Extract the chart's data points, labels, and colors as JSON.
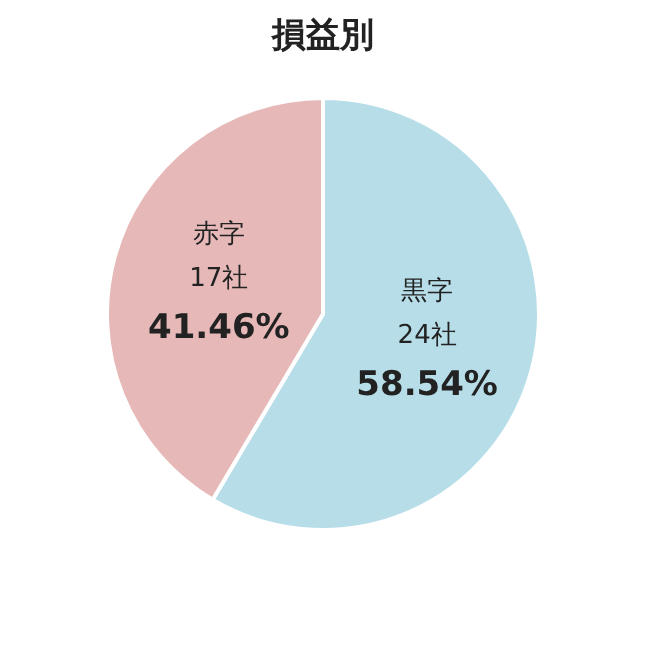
{
  "chart_data": {
    "type": "pie",
    "title": "損益別",
    "categories": [
      "黒字",
      "赤字"
    ],
    "values": [
      24,
      17
    ],
    "value_labels": [
      "24社\n58.54%",
      "17社\n41.46%"
    ],
    "colors": [
      "#b7dee8",
      "#e6b9b8"
    ],
    "legend": false
  }
}
